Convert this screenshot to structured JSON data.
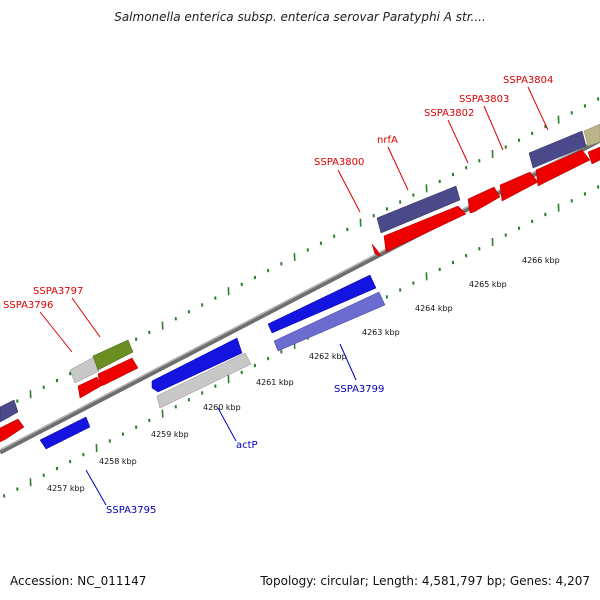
{
  "title": "Salmonella enterica subsp. enterica serovar Paratyphi A str....",
  "footer": {
    "accession": "Accession: NC_011147",
    "topology": "Topology: circular; Length: 4,581,797 bp; Genes: 4,207"
  },
  "colors": {
    "backbone": "#8c8c8c",
    "tick": "#2e7d2e",
    "label_forward": "#dd0000",
    "label_reverse": "#0000bb",
    "gene_red": "#ee0000",
    "gene_navy": "#4a4a8a",
    "gene_blue": "#1414e0",
    "gene_lightblue": "#6b6bd0",
    "gene_gray": "#c8c8c8",
    "gene_olive": "#6b8e23",
    "gene_khaki": "#bdb58a"
  },
  "scale": {
    "unit": "kbp",
    "ticks": [
      "4257 kbp",
      "4258 kbp",
      "4259 kbp",
      "4260 kbp",
      "4261 kbp",
      "4262 kbp",
      "4263 kbp",
      "4264 kbp",
      "4265 kbp",
      "4266 kbp"
    ]
  },
  "genes": [
    {
      "label": "SSPA3796",
      "strand": "forward",
      "color": "red"
    },
    {
      "label": "SSPA3797",
      "strand": "forward",
      "color": "olive"
    },
    {
      "label": "SSPA3800",
      "strand": "forward",
      "color": "red"
    },
    {
      "label": "nrfA",
      "strand": "forward",
      "color": "navy"
    },
    {
      "label": "SSPA3802",
      "strand": "forward",
      "color": "red"
    },
    {
      "label": "SSPA3803",
      "strand": "forward",
      "color": "red"
    },
    {
      "label": "SSPA3804",
      "strand": "forward",
      "color": "navy"
    },
    {
      "label": "SSPA3795",
      "strand": "reverse",
      "color": "blue"
    },
    {
      "label": "actP",
      "strand": "reverse",
      "color": "blue"
    },
    {
      "label": "SSPA3799",
      "strand": "reverse",
      "color": "lightblue"
    }
  ]
}
